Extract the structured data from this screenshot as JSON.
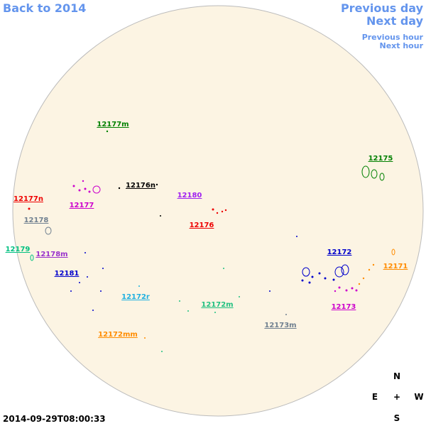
{
  "nav": {
    "back": "Back to 2014",
    "previous_day": "Previous day",
    "next_day": "Next day",
    "previous_hour": "Previous hour",
    "next_hour": "Next hour"
  },
  "regions": [
    {
      "label": "12177m"
    },
    {
      "label": "12175"
    },
    {
      "label": "12176n"
    },
    {
      "label": "12180"
    },
    {
      "label": "12177n"
    },
    {
      "label": "12177"
    },
    {
      "label": "12176"
    },
    {
      "label": "12178"
    },
    {
      "label": "12179"
    },
    {
      "label": "12178m"
    },
    {
      "label": "12172"
    },
    {
      "label": "12171"
    },
    {
      "label": "12181"
    },
    {
      "label": "12172r"
    },
    {
      "label": "12172m"
    },
    {
      "label": "12173"
    },
    {
      "label": "12173m"
    },
    {
      "label": "12172mm"
    }
  ],
  "compass": {
    "north": "N",
    "east": "E",
    "center": "+",
    "west": "W",
    "south": "S"
  },
  "timestamp": "2014-09-29T08:00:33"
}
